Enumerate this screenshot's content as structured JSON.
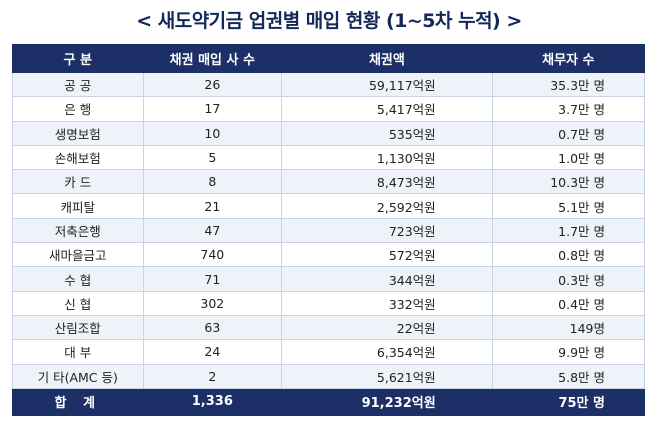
{
  "title": "< 새도약기금 업권별 매입 현황 (1~5차 누적) >",
  "table": {
    "headers": [
      "구 분",
      "채권 매입 사 수",
      "채권액",
      "채무자 수"
    ],
    "rows": [
      [
        "공 공",
        "26",
        "59,117억원",
        "35.3만 명"
      ],
      [
        "은 행",
        "17",
        "5,417억원",
        "3.7만 명"
      ],
      [
        "생명보험",
        "10",
        "535억원",
        "0.7만 명"
      ],
      [
        "손해보험",
        "5",
        "1,130억원",
        "1.0만 명"
      ],
      [
        "카 드",
        "8",
        "8,473억원",
        "10.3만 명"
      ],
      [
        "캐피탈",
        "21",
        "2,592억원",
        "5.1만 명"
      ],
      [
        "저축은행",
        "47",
        "723억원",
        "1.7만 명"
      ],
      [
        "새마을금고",
        "740",
        "572억원",
        "0.8만 명"
      ],
      [
        "수 협",
        "71",
        "344억원",
        "0.3만 명"
      ],
      [
        "신 협",
        "302",
        "332억원",
        "0.4만 명"
      ],
      [
        "산림조합",
        "63",
        "22억원",
        "149명"
      ],
      [
        "대 부",
        "24",
        "6,354억원",
        "9.9만 명"
      ],
      [
        "기 타(AMC 등)",
        "2",
        "5,621억원",
        "5.8만 명"
      ]
    ],
    "total": [
      "합 계",
      "1,336",
      "91,232억원",
      "75만 명"
    ]
  }
}
